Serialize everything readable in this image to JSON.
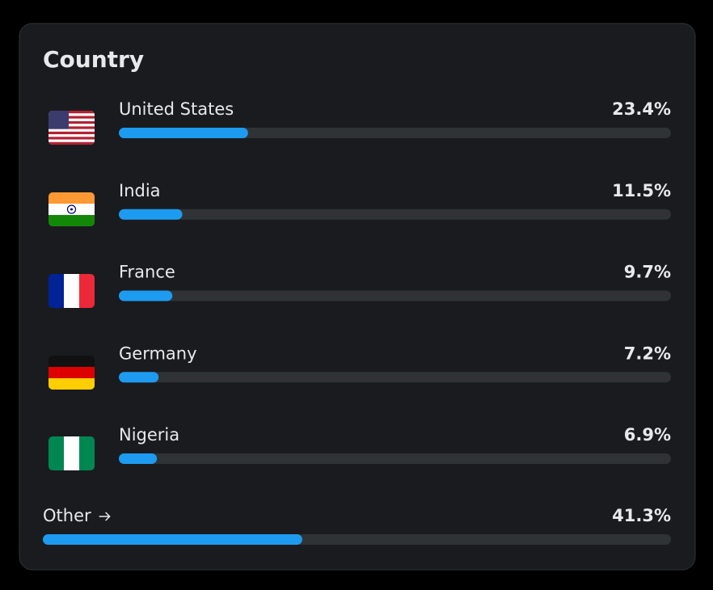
{
  "chart_data": {
    "type": "bar",
    "orientation": "horizontal",
    "title": "Country",
    "categories": [
      "United States",
      "India",
      "France",
      "Germany",
      "Nigeria",
      "Other"
    ],
    "values": [
      23.4,
      11.5,
      9.7,
      7.2,
      6.9,
      41.3
    ],
    "value_labels": [
      "23.4%",
      "11.5%",
      "9.7%",
      "7.2%",
      "6.9%",
      "41.3%"
    ],
    "xlim": [
      0,
      100
    ],
    "color": "#1d9bf0"
  }
}
